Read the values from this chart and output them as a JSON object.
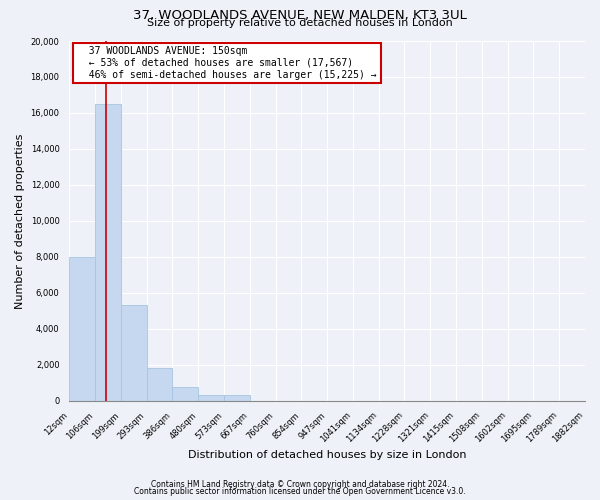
{
  "title": "37, WOODLANDS AVENUE, NEW MALDEN, KT3 3UL",
  "subtitle": "Size of property relative to detached houses in London",
  "xlabel": "Distribution of detached houses by size in London",
  "ylabel": "Number of detached properties",
  "bar_heights": [
    8000,
    16500,
    5300,
    1800,
    750,
    300,
    300,
    0,
    0,
    0,
    0,
    0,
    0,
    0,
    0,
    0,
    0,
    0,
    0,
    0
  ],
  "bar_labels": [
    "12sqm",
    "106sqm",
    "199sqm",
    "293sqm",
    "386sqm",
    "480sqm",
    "573sqm",
    "667sqm",
    "760sqm",
    "854sqm",
    "947sqm",
    "1041sqm",
    "1134sqm",
    "1228sqm",
    "1321sqm",
    "1415sqm",
    "1508sqm",
    "1602sqm",
    "1695sqm",
    "1789sqm",
    "1882sqm"
  ],
  "bar_color": "#c5d8f0",
  "bar_edge_color": "#a8c4e0",
  "vline_x": 1.42,
  "vline_color": "#cc0000",
  "annotation_title": "37 WOODLANDS AVENUE: 150sqm",
  "annotation_line1": "← 53% of detached houses are smaller (17,567)",
  "annotation_line2": "46% of semi-detached houses are larger (15,225) →",
  "ylim": [
    0,
    20000
  ],
  "yticks": [
    0,
    2000,
    4000,
    6000,
    8000,
    10000,
    12000,
    14000,
    16000,
    18000,
    20000
  ],
  "footer_line1": "Contains HM Land Registry data © Crown copyright and database right 2024.",
  "footer_line2": "Contains public sector information licensed under the Open Government Licence v3.0.",
  "background_color": "#eef2f8",
  "plot_bg_color": "#eef2f8",
  "grid_color": "#ffffff",
  "title_fontsize": 9.5,
  "subtitle_fontsize": 8,
  "axis_label_fontsize": 8,
  "tick_fontsize": 6,
  "annotation_fontsize": 7,
  "footer_fontsize": 5.5
}
